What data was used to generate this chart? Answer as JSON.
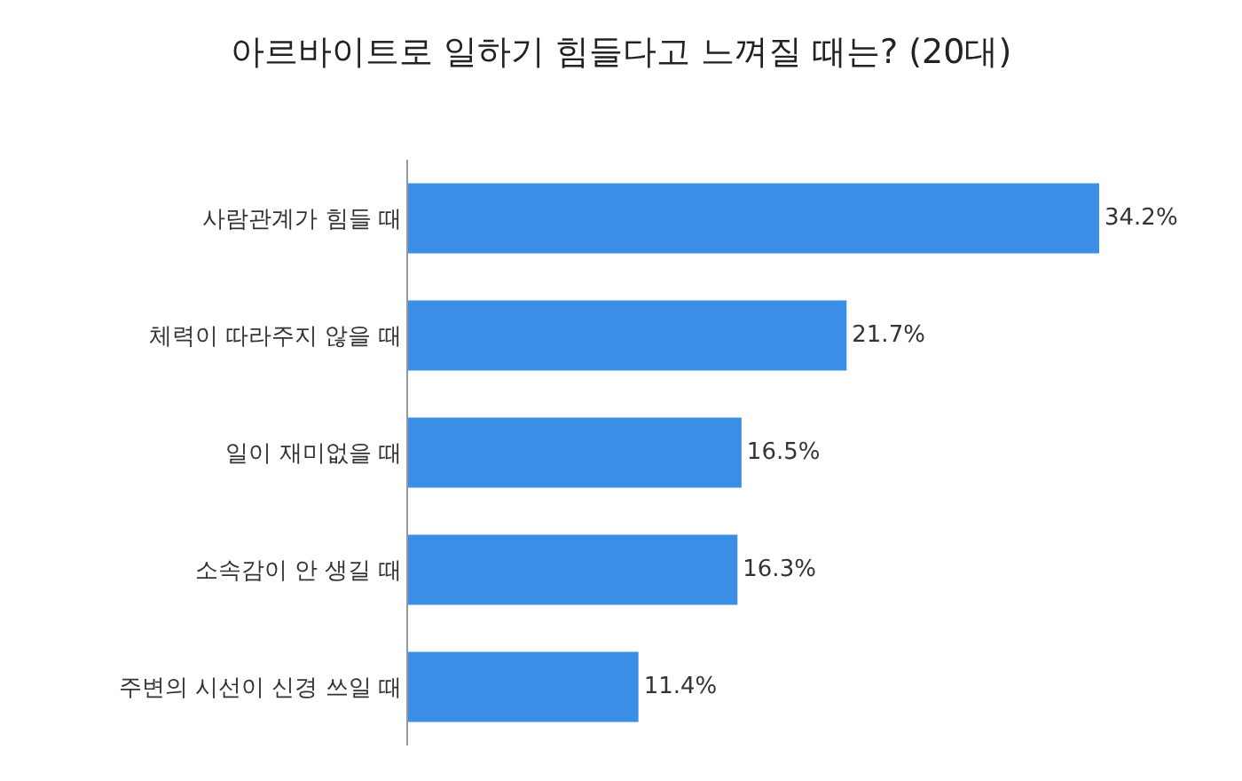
{
  "chart_data": {
    "type": "bar",
    "orientation": "horizontal",
    "title": "아르바이트로 일하기 힘들다고 느껴질 때는? (20대)",
    "categories": [
      "사람관계가 힘들 때",
      "체력이 따라주지 않을 때",
      "일이 재미없을 때",
      "소속감이 안 생길 때",
      "주변의 시선이 신경 쓰일 때"
    ],
    "values": [
      34.2,
      21.7,
      16.5,
      16.3,
      11.4
    ],
    "value_labels": [
      "34.2%",
      "21.7%",
      "16.5%",
      "16.3%",
      "11.4%"
    ],
    "color": "#3a8ee6",
    "tick_labels": "y",
    "grid": false,
    "legend": false
  }
}
